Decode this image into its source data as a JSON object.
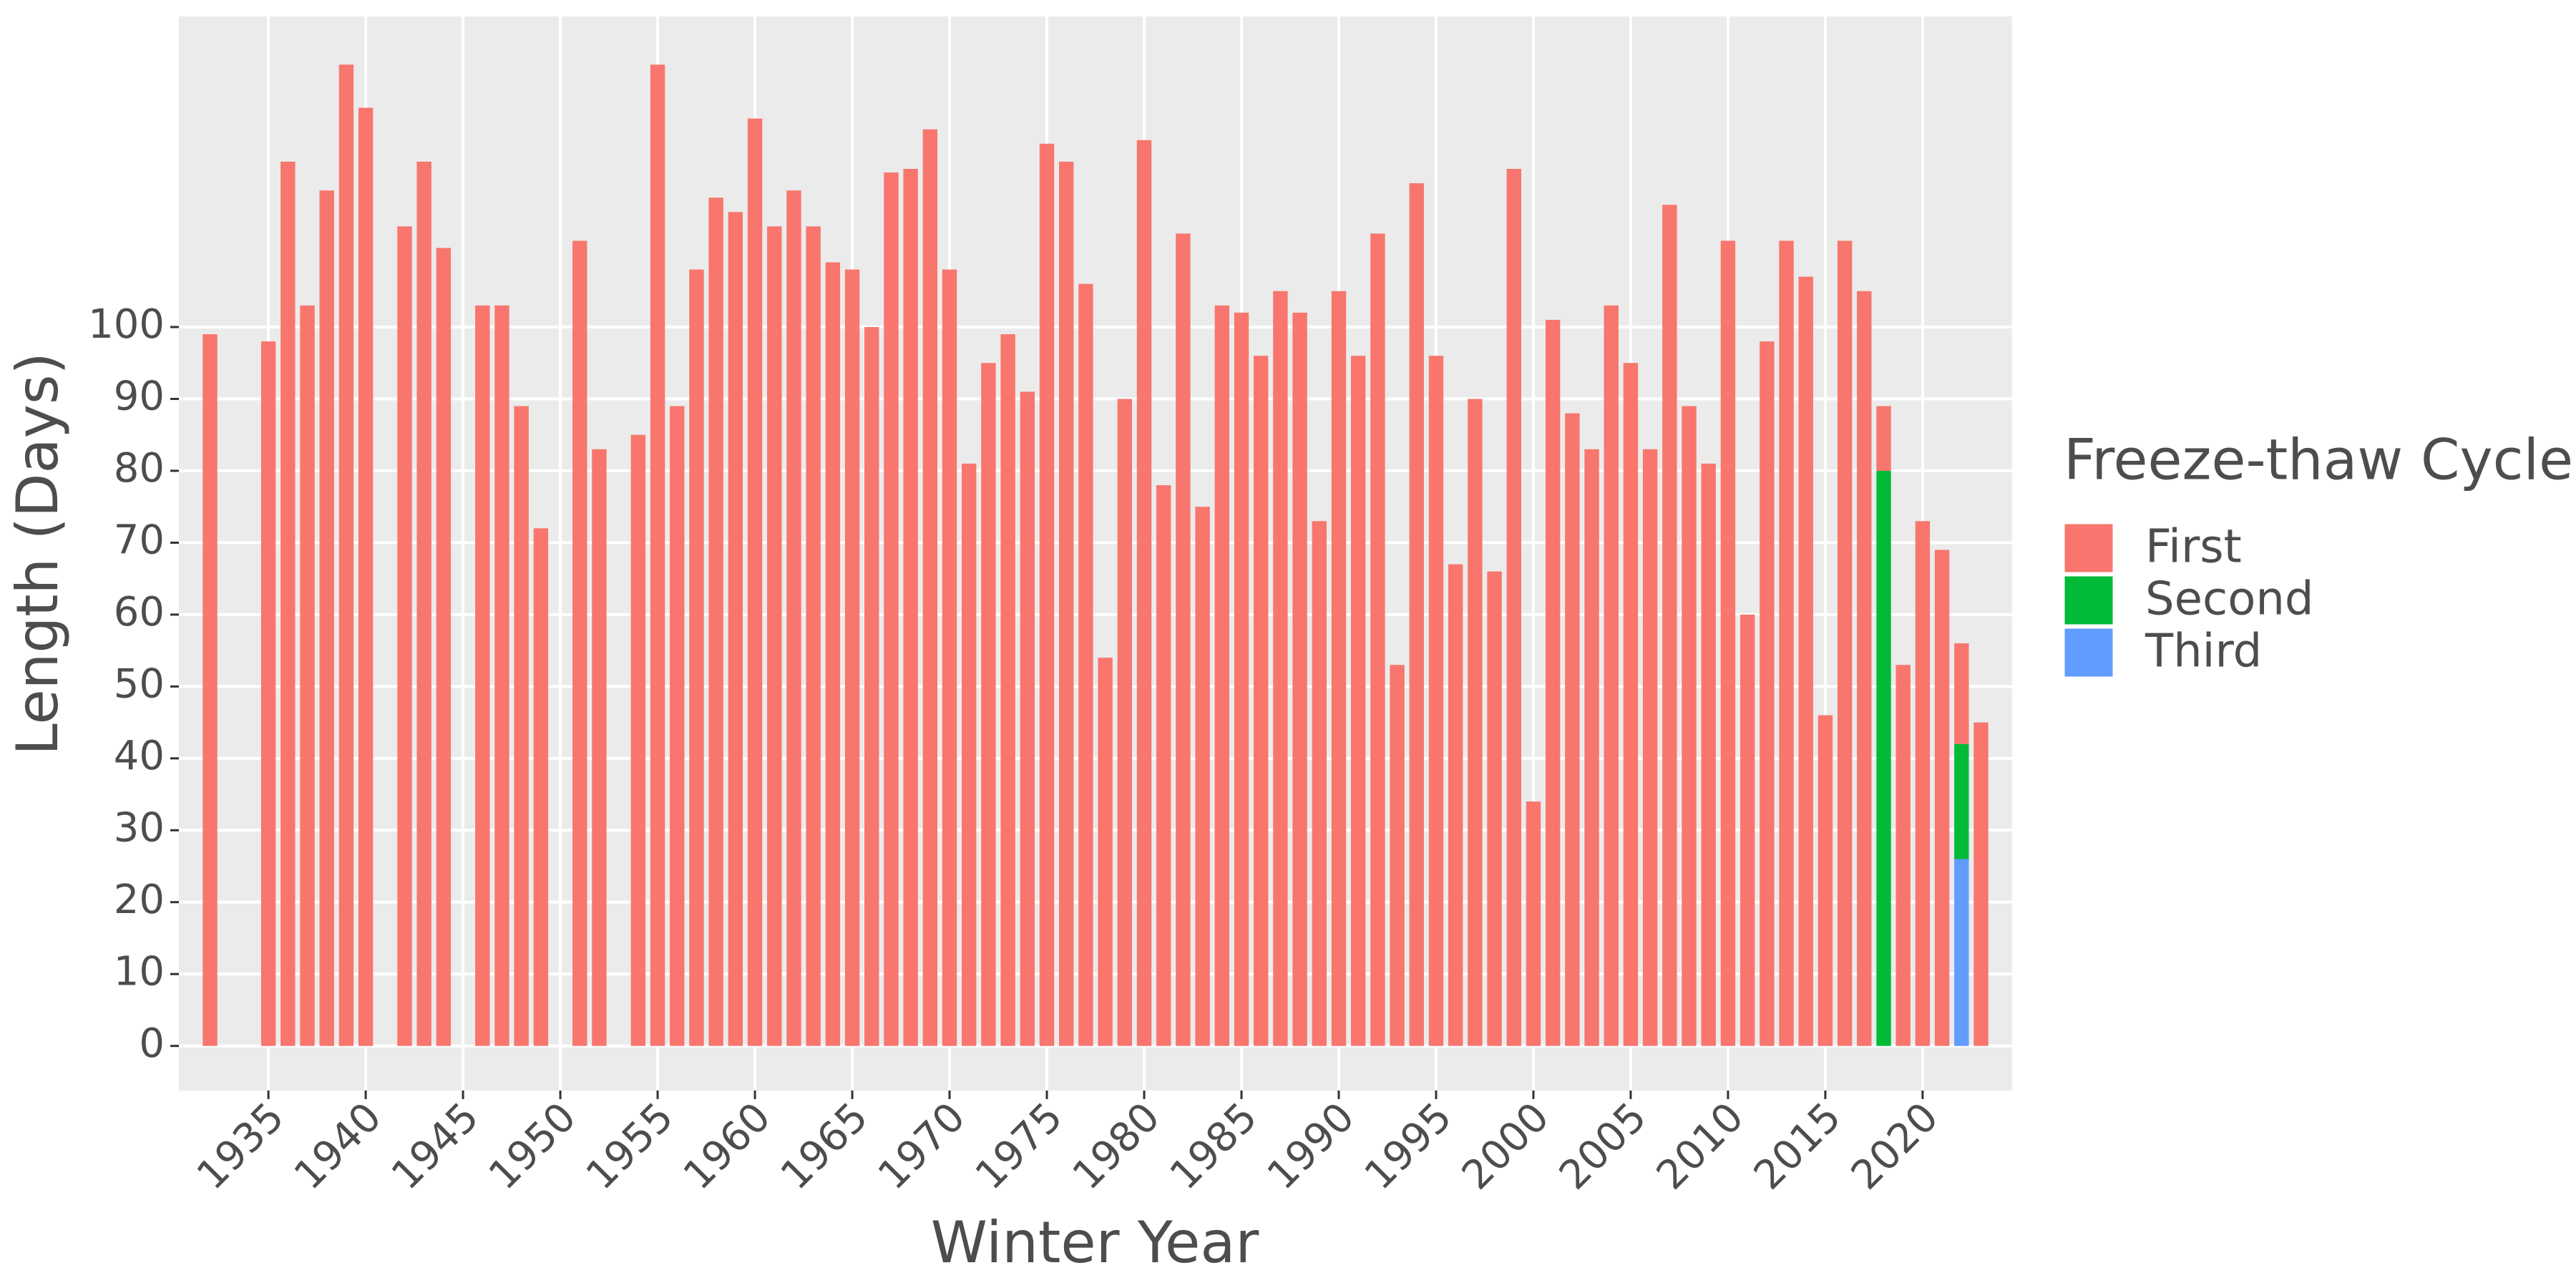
{
  "chart_data": {
    "type": "bar",
    "stacked": true,
    "x_label": "Winter Year",
    "y_label": "Length (Days)",
    "legend_title": "Freeze-thaw Cycle",
    "legend_position": "right",
    "x": [
      1932,
      1935,
      1936,
      1937,
      1938,
      1939,
      1940,
      1942,
      1943,
      1944,
      1946,
      1947,
      1948,
      1949,
      1951,
      1952,
      1954,
      1955,
      1956,
      1957,
      1958,
      1959,
      1960,
      1961,
      1962,
      1963,
      1964,
      1965,
      1966,
      1967,
      1968,
      1969,
      1970,
      1971,
      1972,
      1973,
      1974,
      1975,
      1976,
      1977,
      1978,
      1979,
      1980,
      1981,
      1982,
      1983,
      1984,
      1985,
      1986,
      1987,
      1988,
      1989,
      1990,
      1991,
      1992,
      1993,
      1994,
      1995,
      1996,
      1997,
      1998,
      1999,
      2000,
      2001,
      2002,
      2003,
      2004,
      2005,
      2006,
      2007,
      2008,
      2009,
      2010,
      2011,
      2012,
      2013,
      2014,
      2015,
      2016,
      2017,
      2018,
      2019,
      2020,
      2021,
      2022,
      2023
    ],
    "series": [
      {
        "name": "First",
        "color": "#F8766D",
        "values": [
          99,
          98,
          123,
          103,
          119,
          136.5,
          130.5,
          114,
          123,
          111,
          103,
          103,
          89,
          72,
          112,
          83,
          85,
          136.5,
          89,
          108,
          118,
          116,
          129,
          114,
          119,
          114,
          109,
          108,
          100,
          121.5,
          122,
          127.5,
          108,
          81,
          95,
          99,
          91,
          125.5,
          123,
          106,
          54,
          90,
          126,
          78,
          113,
          75,
          103,
          102,
          96,
          105,
          102,
          73,
          105,
          96,
          113,
          53,
          120,
          96,
          67,
          90,
          66,
          122,
          34,
          101,
          88,
          83,
          103,
          95,
          83,
          117,
          89,
          81,
          112,
          60,
          98,
          112,
          107,
          46,
          112,
          105,
          9,
          53,
          73,
          69,
          14,
          45
        ]
      },
      {
        "name": "Second",
        "color": "#00BA38",
        "values": [
          null,
          null,
          null,
          null,
          null,
          null,
          null,
          null,
          null,
          null,
          null,
          null,
          null,
          null,
          null,
          null,
          null,
          null,
          null,
          null,
          null,
          null,
          null,
          null,
          null,
          null,
          null,
          null,
          null,
          null,
          null,
          null,
          null,
          null,
          null,
          null,
          null,
          null,
          null,
          null,
          null,
          null,
          null,
          null,
          null,
          null,
          null,
          null,
          null,
          null,
          null,
          null,
          null,
          null,
          null,
          null,
          null,
          null,
          null,
          null,
          null,
          null,
          null,
          null,
          null,
          null,
          null,
          null,
          null,
          null,
          null,
          null,
          null,
          null,
          null,
          null,
          null,
          null,
          null,
          null,
          80,
          null,
          null,
          null,
          16,
          null
        ]
      },
      {
        "name": "Third",
        "color": "#619CFF",
        "values": [
          null,
          null,
          null,
          null,
          null,
          null,
          null,
          null,
          null,
          null,
          null,
          null,
          null,
          null,
          null,
          null,
          null,
          null,
          null,
          null,
          null,
          null,
          null,
          null,
          null,
          null,
          null,
          null,
          null,
          null,
          null,
          null,
          null,
          null,
          null,
          null,
          null,
          null,
          null,
          null,
          null,
          null,
          null,
          null,
          null,
          null,
          null,
          null,
          null,
          null,
          null,
          null,
          null,
          null,
          null,
          null,
          null,
          null,
          null,
          null,
          null,
          null,
          null,
          null,
          null,
          null,
          null,
          null,
          null,
          null,
          null,
          null,
          null,
          null,
          null,
          null,
          null,
          null,
          null,
          null,
          null,
          null,
          null,
          null,
          26,
          null
        ]
      }
    ],
    "xlim": [
      1930.4,
      2024.6
    ],
    "xticks": [
      1935,
      1940,
      1945,
      1950,
      1955,
      1960,
      1965,
      1970,
      1975,
      1980,
      1985,
      1990,
      1995,
      2000,
      2005,
      2010,
      2015,
      2020
    ],
    "ylim": [
      -6.2,
      143.2
    ],
    "yticks": [
      0,
      10,
      20,
      30,
      40,
      50,
      60,
      70,
      80,
      90,
      100
    ],
    "grid": true,
    "panel_background": "#EBEBEB"
  }
}
